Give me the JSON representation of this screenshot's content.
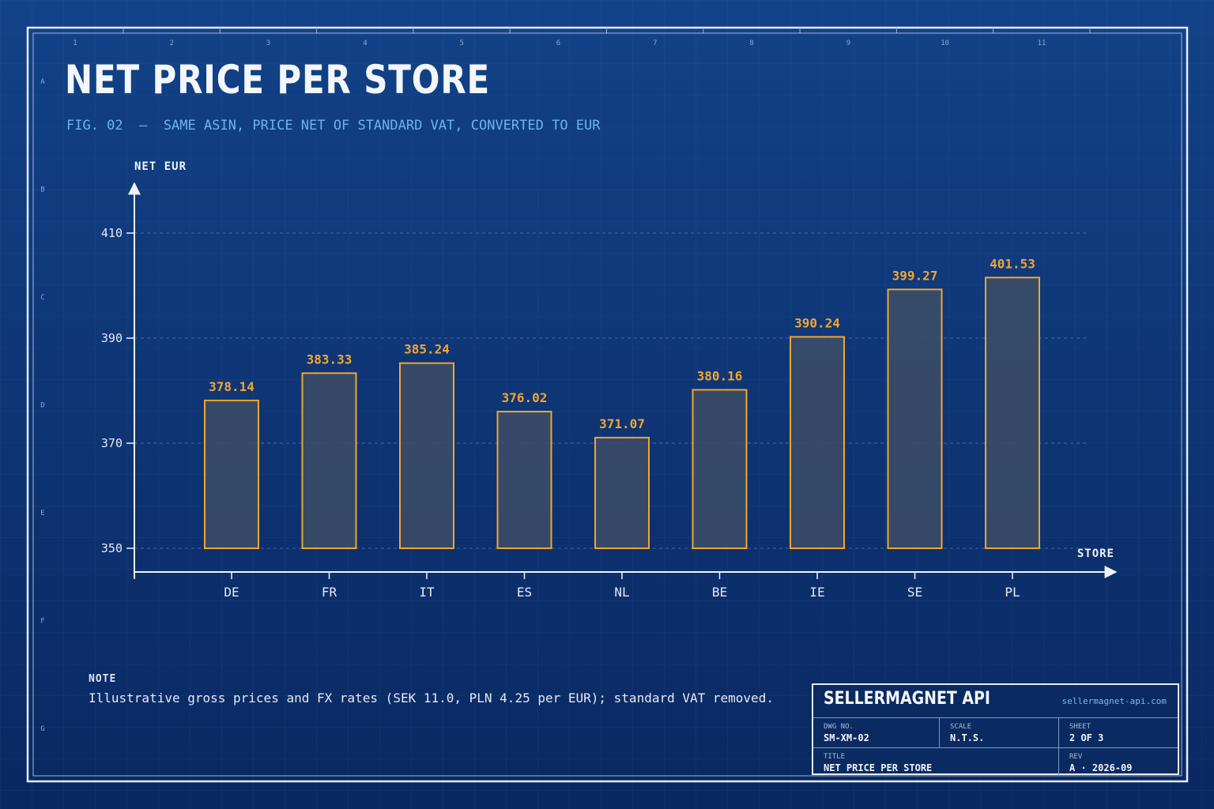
{
  "header": {
    "title": "NET PRICE PER STORE",
    "subtitle": "FIG. 02  —  SAME ASIN, PRICE NET OF STANDARD VAT, CONVERTED TO EUR"
  },
  "frame": {
    "column_labels": [
      "1",
      "2",
      "3",
      "4",
      "5",
      "6",
      "7",
      "8",
      "9",
      "10",
      "11"
    ],
    "row_labels": [
      "A",
      "B",
      "C",
      "D",
      "E",
      "F",
      "G"
    ]
  },
  "chart_data": {
    "type": "bar",
    "ylabel": "NET EUR",
    "xlabel": "STORE",
    "categories": [
      "DE",
      "FR",
      "IT",
      "ES",
      "NL",
      "BE",
      "IE",
      "SE",
      "PL"
    ],
    "values": [
      378.14,
      383.33,
      385.24,
      376.02,
      371.07,
      380.16,
      390.24,
      399.27,
      401.53
    ],
    "value_labels": [
      "378.14",
      "383.33",
      "385.24",
      "376.02",
      "371.07",
      "380.16",
      "390.24",
      "399.27",
      "401.53"
    ],
    "ylim": [
      350,
      410
    ],
    "yticks": [
      "350",
      "370",
      "390",
      "410"
    ],
    "grid": "horizontal dashed",
    "colors": {
      "background": "#0f3a7e",
      "bar_stroke": "#f2a531",
      "bar_fill": "#3d4d66",
      "value_label": "#f2a531"
    }
  },
  "note": {
    "label": "NOTE",
    "text": "Illustrative gross prices and FX rates (SEK 11.0, PLN 4.25 per EUR); standard VAT removed."
  },
  "title_block": {
    "brand": "SELLERMAGNET API",
    "url": "sellermagnet-api.com",
    "dwg_no_label": "DWG NO.",
    "dwg_no": "SM-XM-02",
    "scale_label": "SCALE",
    "scale": "N.T.S.",
    "sheet_label": "SHEET",
    "sheet": "2 OF 3",
    "title_label": "TITLE",
    "title": "NET PRICE PER STORE",
    "rev_label": "REV",
    "rev": "A · 2026-09"
  }
}
